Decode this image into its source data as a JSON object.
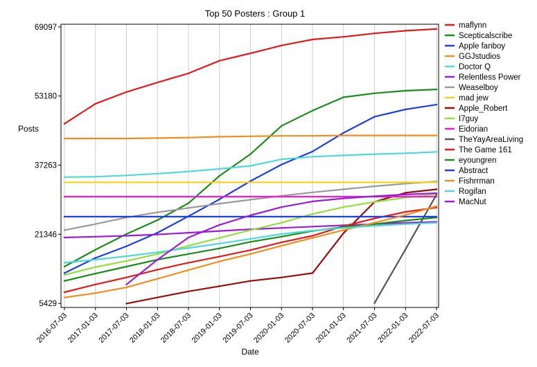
{
  "chart_data": {
    "type": "line",
    "title": "Top 50 Posters : Group 1",
    "xlabel": "Date",
    "ylabel": "Posts",
    "yticks": [
      5429,
      21346,
      37263,
      53180,
      69097
    ],
    "ylim": [
      4500,
      69700
    ],
    "x": [
      "2016-07-03",
      "2017-01-03",
      "2017-07-03",
      "2018-01-03",
      "2018-07-03",
      "2019-01-03",
      "2019-07-03",
      "2020-01-03",
      "2020-07-03",
      "2021-01-03",
      "2021-07-03",
      "2022-01-03",
      "2022-07-03"
    ],
    "grid": "vertical",
    "legend_position": "right",
    "series": [
      {
        "name": "maflynn",
        "color": "#e31a1c",
        "values": [
          46800,
          51400,
          54100,
          56300,
          58400,
          61300,
          63000,
          64800,
          66200,
          66800,
          67600,
          68200,
          68600
        ]
      },
      {
        "name": "Scepticalscribe",
        "color": "#1a8c1a",
        "values": [
          13900,
          17800,
          21400,
          24600,
          28500,
          34800,
          39800,
          46300,
          49800,
          52900,
          53800,
          54400,
          54700
        ]
      },
      {
        "name": "Apple fanboy",
        "color": "#1c3fe0",
        "values": [
          12400,
          15900,
          18600,
          21700,
          25500,
          29400,
          33600,
          37400,
          40400,
          44700,
          48400,
          50100,
          51200
        ]
      },
      {
        "name": "GGJstudios",
        "color": "#f28c1c",
        "values": [
          43400,
          43400,
          43400,
          43500,
          43600,
          43800,
          43900,
          44000,
          44000,
          44100,
          44100,
          44100,
          44100
        ]
      },
      {
        "name": "Doctor Q",
        "color": "#4fd8d8",
        "values": [
          34500,
          34600,
          34900,
          35300,
          35800,
          36400,
          37100,
          38600,
          39200,
          39500,
          39800,
          40000,
          40300
        ]
      },
      {
        "name": "Relentless Power",
        "color": "#9b1cd8",
        "values": [
          20600,
          20800,
          21000,
          21300,
          21700,
          22100,
          22500,
          22800,
          23100,
          23400,
          23700,
          24000,
          24200
        ]
      },
      {
        "name": "Weaselboy",
        "color": "#999999",
        "values": [
          22300,
          23700,
          25200,
          26400,
          27400,
          28400,
          29300,
          30200,
          31000,
          31700,
          32400,
          33000,
          33500
        ]
      },
      {
        "name": "mad jew",
        "color": "#f5d21a",
        "values": [
          33300,
          33300,
          33300,
          33300,
          33300,
          33300,
          33300,
          33300,
          33300,
          33300,
          33300,
          33300,
          33300
        ]
      },
      {
        "name": "Apple_Robert",
        "color": "#9a0c0c",
        "values": [
          null,
          null,
          5400,
          6800,
          8200,
          9400,
          10600,
          11400,
          12400,
          21600,
          28800,
          30900,
          31700
        ]
      },
      {
        "name": "I7guy",
        "color": "#92e03c",
        "values": [
          12000,
          13800,
          15200,
          16800,
          18700,
          20500,
          22300,
          24000,
          26000,
          27600,
          28800,
          29800,
          30600
        ]
      },
      {
        "name": "Eidorian",
        "color": "#f01ad8",
        "values": [
          30000,
          30000,
          30000,
          30000,
          30000,
          30000,
          30000,
          30000,
          30000,
          30000,
          30000,
          30000,
          30000
        ]
      },
      {
        "name": "TheYayAreaLiving",
        "color": "#555555",
        "values": [
          null,
          null,
          null,
          null,
          null,
          null,
          null,
          null,
          null,
          null,
          5500,
          17900,
          30500
        ]
      },
      {
        "name": "The Game 161",
        "color": "#e31a1c",
        "values": [
          8000,
          9800,
          11400,
          13200,
          14800,
          16200,
          17700,
          19500,
          21000,
          23200,
          25000,
          26500,
          27500
        ]
      },
      {
        "name": "eyoungren",
        "color": "#1a8c1a",
        "values": [
          10600,
          12300,
          13900,
          15500,
          16800,
          18100,
          19600,
          20800,
          22100,
          23000,
          23700,
          24500,
          25200
        ]
      },
      {
        "name": "Abstract",
        "color": "#1c3fe0",
        "values": [
          25400,
          25400,
          25400,
          25400,
          25400,
          25400,
          25400,
          25400,
          25400,
          25400,
          25400,
          25400,
          25400
        ]
      },
      {
        "name": "Fishrrman",
        "color": "#f28c1c",
        "values": [
          6800,
          7800,
          9100,
          11100,
          13100,
          15100,
          16800,
          18700,
          20500,
          22300,
          24000,
          25800,
          27800
        ]
      },
      {
        "name": "Rogifan",
        "color": "#4fd8d8",
        "values": [
          14800,
          15500,
          16300,
          17200,
          18200,
          19200,
          20300,
          21400,
          22200,
          22800,
          23300,
          23700,
          24000
        ]
      },
      {
        "name": "MacNut",
        "color": "#9b1cd8",
        "values": [
          null,
          null,
          9800,
          15500,
          20600,
          23500,
          25700,
          27600,
          28900,
          29600,
          30100,
          30500,
          30800
        ]
      }
    ]
  }
}
